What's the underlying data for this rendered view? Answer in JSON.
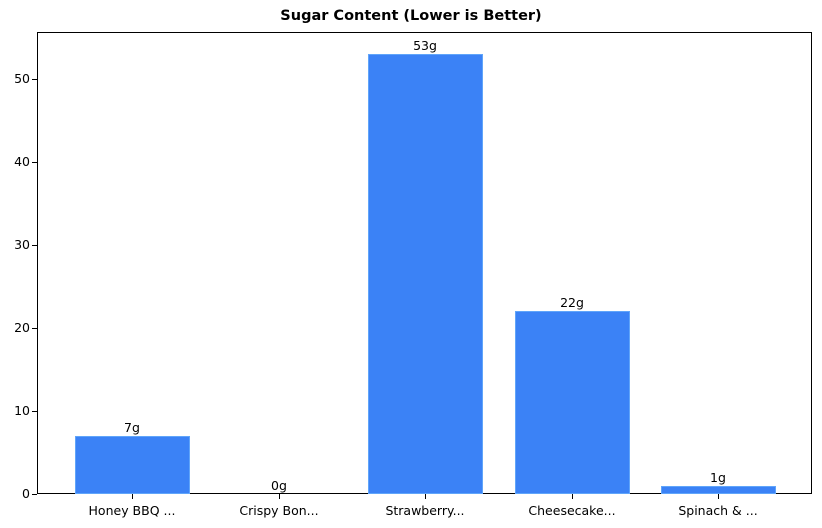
{
  "chart_data": {
    "type": "bar",
    "title": "Sugar Content (Lower is Better)",
    "xlabel": "",
    "ylabel": "",
    "categories": [
      "Honey BBQ ...",
      "Crispy Bon...",
      "Strawberry...",
      "Cheesecake...",
      "Spinach & ..."
    ],
    "values": [
      7,
      0,
      53,
      22,
      1
    ],
    "value_labels": [
      "7g",
      "0g",
      "53g",
      "22g",
      "1g"
    ],
    "ylim": [
      0,
      55.65
    ],
    "yticks": [
      0,
      10,
      20,
      30,
      40,
      50
    ],
    "ytick_labels": [
      "0",
      "10",
      "20",
      "30",
      "40",
      "50"
    ],
    "grid": false,
    "legend": null,
    "colors": {
      "bar": "#3b82f6",
      "bar_edge": "#60a5fa"
    }
  }
}
